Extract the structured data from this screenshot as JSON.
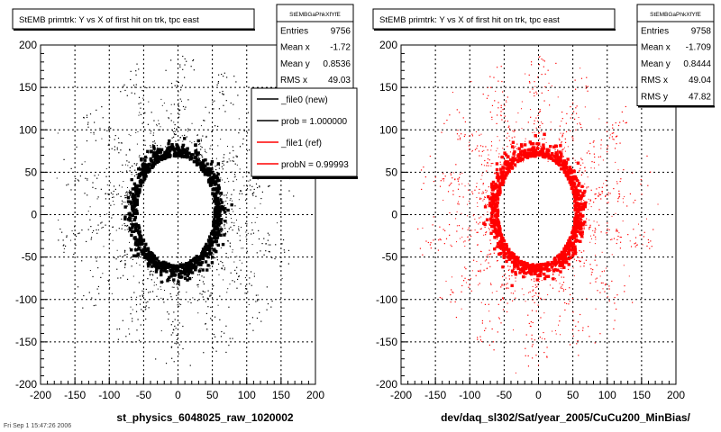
{
  "footer_text": "Fri Sep  1 15:47:26 2006",
  "chart_data": [
    {
      "type": "scatter",
      "title": "StEMB primtrk: Y vs X of first hit on trk, tpc east",
      "xlabel": "st_physics_6048025_raw_1020002",
      "ylabel": "",
      "xlim": [
        -200,
        200
      ],
      "ylim": [
        -200,
        200
      ],
      "xticks": [
        -200,
        -150,
        -100,
        -50,
        0,
        50,
        100,
        150,
        200
      ],
      "yticks": [
        -200,
        -150,
        -100,
        -50,
        0,
        50,
        100,
        150,
        200
      ],
      "grid": true,
      "color": "#000000",
      "description": "dense ring of hits centered near origin, inner ellipse ~55 wide x ~65 tall, sparse radial spokes out to ~170",
      "stats": {
        "name": "StEMBGaPhkXfYfE",
        "rows": [
          {
            "label": "Entries",
            "value": "9756"
          },
          {
            "label": "Mean x",
            "value": "-1.72"
          },
          {
            "label": "Mean y",
            "value": "0.8536"
          },
          {
            "label": "RMS x",
            "value": "49.03"
          }
        ]
      },
      "legend": {
        "placement": "top-right",
        "entries": [
          {
            "label": "_file0 (new)",
            "color": "#000000"
          },
          {
            "label": "prob = 1.000000",
            "color": "#000000"
          },
          {
            "label": "_file1 (ref)",
            "color": "#ff0000"
          },
          {
            "label": "probN = 0.99993",
            "color": "#ff0000"
          }
        ]
      }
    },
    {
      "type": "scatter",
      "title": "StEMB primtrk: Y vs X of first hit on trk, tpc east",
      "xlabel": "dev/daq_sl302/Sat/year_2005/CuCu200_MinBias/",
      "ylabel": "",
      "xlim": [
        -200,
        200
      ],
      "ylim": [
        -200,
        200
      ],
      "xticks": [
        -200,
        -150,
        -100,
        -50,
        0,
        50,
        100,
        150,
        200
      ],
      "yticks": [
        -200,
        -150,
        -100,
        -50,
        0,
        50,
        100,
        150,
        200
      ],
      "grid": true,
      "color": "#ff0000",
      "description": "dense ring of hits centered near origin, inner ellipse ~55 wide x ~65 tall, sparse radial spokes out to ~170",
      "stats": {
        "name": "StEMBGaPhkXfYfE",
        "rows": [
          {
            "label": "Entries",
            "value": "9758"
          },
          {
            "label": "Mean x",
            "value": "-1.709"
          },
          {
            "label": "Mean y",
            "value": "0.8444"
          },
          {
            "label": "RMS x",
            "value": "49.04"
          },
          {
            "label": "RMS y",
            "value": "47.82"
          }
        ]
      }
    }
  ]
}
